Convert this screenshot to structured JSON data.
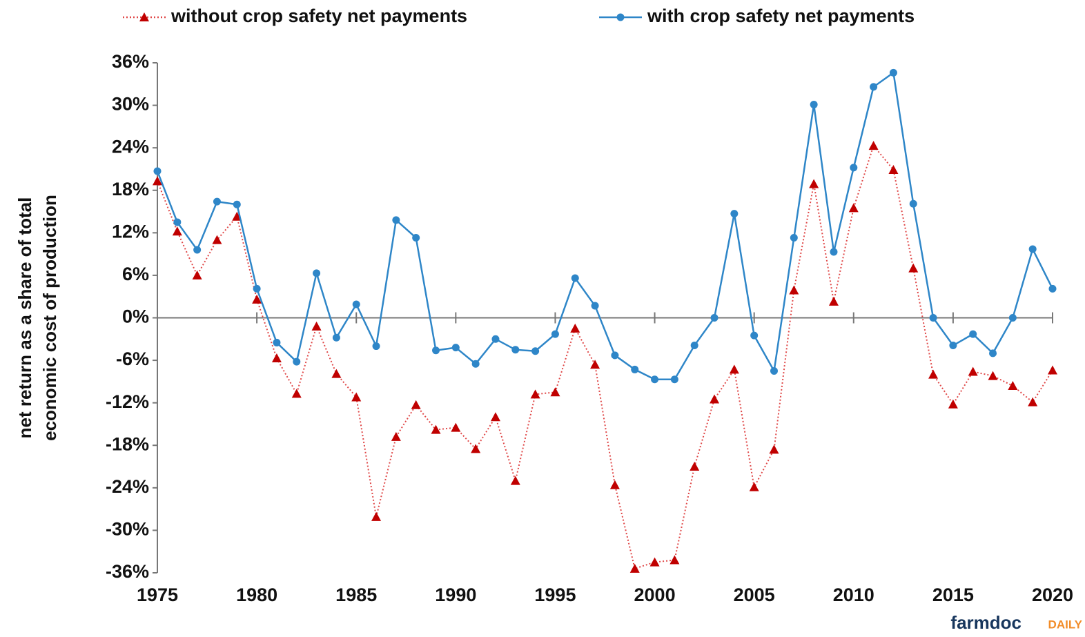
{
  "chart_data": {
    "type": "line",
    "ylabel": [
      "net return as a share of total",
      "economic cost of production"
    ],
    "watermark": [
      "farmdoc",
      "DAILY"
    ],
    "x": [
      1975,
      1976,
      1977,
      1978,
      1979,
      1980,
      1981,
      1982,
      1983,
      1984,
      1985,
      1986,
      1987,
      1988,
      1989,
      1990,
      1991,
      1992,
      1993,
      1994,
      1995,
      1996,
      1997,
      1998,
      1999,
      2000,
      2001,
      2002,
      2003,
      2004,
      2005,
      2006,
      2007,
      2008,
      2009,
      2010,
      2011,
      2012,
      2013,
      2014,
      2015,
      2016,
      2017,
      2018,
      2019,
      2020
    ],
    "series": [
      {
        "name": "without crop safety net payments",
        "color": "#c00000",
        "marker": "triangle",
        "values": [
          19.3,
          12.2,
          6,
          11,
          14.3,
          2.6,
          -5.7,
          -10.7,
          -1.2,
          -7.9,
          -11.2,
          -28.1,
          -16.8,
          -12.3,
          -15.8,
          -15.5,
          -18.5,
          -14,
          -23,
          -10.8,
          -10.5,
          -1.5,
          -6.6,
          -23.6,
          -35.4,
          -34.5,
          -34.2,
          -21,
          -11.5,
          -7.3,
          -23.9,
          -18.6,
          3.9,
          18.9,
          2.3,
          15.5,
          24.3,
          20.9,
          7,
          -8,
          -12.2,
          -7.6,
          -8.2,
          -9.6,
          -11.9,
          -7.4
        ]
      },
      {
        "name": "with crop safety net payments",
        "color": "#2e86c8",
        "marker": "circle",
        "values": [
          20.7,
          13.5,
          9.6,
          16.4,
          16,
          4.1,
          -3.5,
          -6.2,
          6.3,
          -2.8,
          1.9,
          -4,
          13.8,
          11.3,
          -4.6,
          -4.2,
          -6.5,
          -3,
          -4.5,
          -4.7,
          -2.3,
          5.6,
          1.7,
          -5.3,
          -7.3,
          -8.7,
          -8.7,
          -3.9,
          0,
          14.7,
          -2.5,
          -7.5,
          11.3,
          30.1,
          9.3,
          21.2,
          32.6,
          34.6,
          16.1,
          0,
          -3.9,
          -2.3,
          -5,
          0,
          9.7,
          4.1
        ]
      }
    ],
    "xlim": [
      1975,
      2020
    ],
    "xticks": [
      1975,
      1980,
      1985,
      1990,
      1995,
      2000,
      2005,
      2010,
      2015,
      2020
    ],
    "ylim": [
      -36,
      36
    ],
    "yticks": [
      {
        "value": -36,
        "label": "-36%"
      },
      {
        "value": -30,
        "label": "-30%"
      },
      {
        "value": -24,
        "label": "-24%"
      },
      {
        "value": -18,
        "label": "-18%"
      },
      {
        "value": -12,
        "label": "-12%"
      },
      {
        "value": -6,
        "label": "-6%"
      },
      {
        "value": 0,
        "label": "0%"
      },
      {
        "value": 6,
        "label": "6%"
      },
      {
        "value": 12,
        "label": "12%"
      },
      {
        "value": 18,
        "label": "18%"
      },
      {
        "value": 24,
        "label": "24%"
      },
      {
        "value": 30,
        "label": "30%"
      },
      {
        "value": 36,
        "label": "36%"
      }
    ],
    "grid": false,
    "legend": "top"
  }
}
